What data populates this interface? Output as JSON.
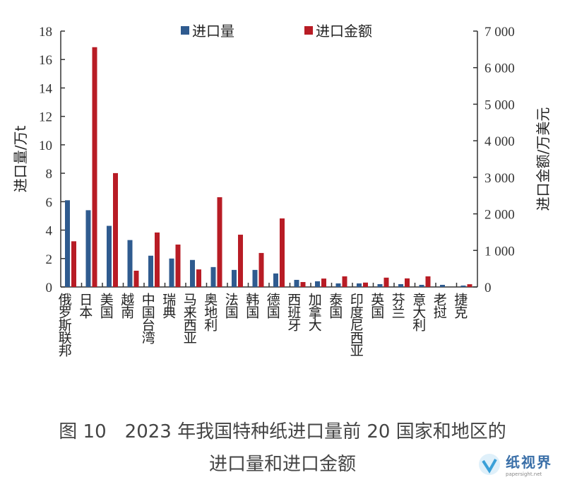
{
  "chart_data": {
    "type": "bar",
    "title": "",
    "ylabel": "进口量/万t",
    "y2label": "进口金额/万美元",
    "ylim": [
      0,
      18
    ],
    "y2lim": [
      0,
      7000
    ],
    "yticks": [
      "0",
      "2",
      "4",
      "6",
      "8",
      "10",
      "12",
      "14",
      "16",
      "18"
    ],
    "y2ticks": [
      "0",
      "1 000",
      "2 000",
      "3 000",
      "4 000",
      "5 000",
      "6 000",
      "7 000"
    ],
    "legend_position": "top",
    "grid": false,
    "categories": [
      "俄罗斯联邦",
      "日本",
      "美国",
      "越南",
      "中国台湾",
      "瑞典",
      "马来西亚",
      "奥地利",
      "法国",
      "韩国",
      "德国",
      "西班牙",
      "加拿大",
      "泰国",
      "印度尼西亚",
      "英国",
      "芬兰",
      "意大利",
      "老挝",
      "捷克"
    ],
    "series": [
      {
        "name": "进口量",
        "axis": "left",
        "color": "#2f5b8f",
        "values": [
          6.1,
          5.4,
          4.3,
          3.3,
          2.2,
          2.0,
          1.9,
          1.4,
          1.2,
          1.2,
          0.95,
          0.5,
          0.4,
          0.25,
          0.25,
          0.2,
          0.2,
          0.15,
          0.15,
          0.1
        ]
      },
      {
        "name": "进口金额",
        "axis": "right",
        "color": "#b81c25",
        "values": [
          1250,
          6560,
          3115,
          445,
          1490,
          1160,
          480,
          2455,
          1430,
          930,
          1875,
          135,
          230,
          290,
          120,
          255,
          235,
          290,
          0,
          75
        ]
      }
    ]
  },
  "caption": {
    "line1": "图 10　2023 年我国特种纸进口量前 20 国家和地区的",
    "line2": "进口量和进口金额"
  },
  "watermark": {
    "title": "纸视界",
    "sub": "papersight.net"
  }
}
